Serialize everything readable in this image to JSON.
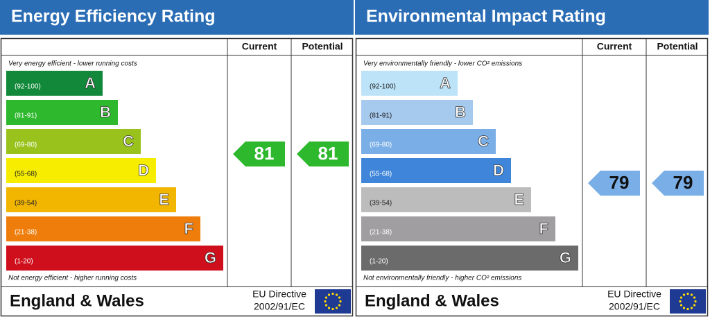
{
  "panels": [
    {
      "title": "Energy Efficiency Rating",
      "columns": [
        "Current",
        "Potential"
      ],
      "top_note": "Very energy efficient - lower running costs",
      "bottom_note": "Not energy efficient - higher running costs",
      "bands": [
        {
          "range": "(92-100)",
          "letter": "A",
          "color": "#12893a"
        },
        {
          "range": "(81-91)",
          "letter": "B",
          "color": "#2db82d"
        },
        {
          "range": "(69-80)",
          "letter": "C",
          "color": "#99c31c"
        },
        {
          "range": "(55-68)",
          "letter": "D",
          "color": "#f7ed00"
        },
        {
          "range": "(39-54)",
          "letter": "E",
          "color": "#f2b500"
        },
        {
          "range": "(21-38)",
          "letter": "F",
          "color": "#ef7d0b"
        },
        {
          "range": "(1-20)",
          "letter": "G",
          "color": "#cf0f1c"
        }
      ],
      "current": 81,
      "potential": 81,
      "footer": "England & Wales",
      "directive": [
        "EU Directive",
        "2002/91/EC"
      ]
    },
    {
      "title": "Environmental Impact Rating",
      "columns": [
        "Current",
        "Potential"
      ],
      "top_note": "Very environmentally friendly - lower CO² emissions",
      "bottom_note": "Not environmentally friendly - higher CO² emissions",
      "bands": [
        {
          "range": "(92-100)",
          "letter": "A",
          "color": "#bde3f8"
        },
        {
          "range": "(81-91)",
          "letter": "B",
          "color": "#a6c9ee"
        },
        {
          "range": "(69-80)",
          "letter": "C",
          "color": "#7aaee6"
        },
        {
          "range": "(55-68)",
          "letter": "D",
          "color": "#3f86da"
        },
        {
          "range": "(39-54)",
          "letter": "E",
          "color": "#bcbcbc"
        },
        {
          "range": "(21-38)",
          "letter": "F",
          "color": "#a09ea0"
        },
        {
          "range": "(1-20)",
          "letter": "G",
          "color": "#6b6b6b"
        }
      ],
      "current": 79,
      "potential": 79,
      "footer": "England & Wales",
      "directive": [
        "EU Directive",
        "2002/91/EC"
      ]
    }
  ]
}
